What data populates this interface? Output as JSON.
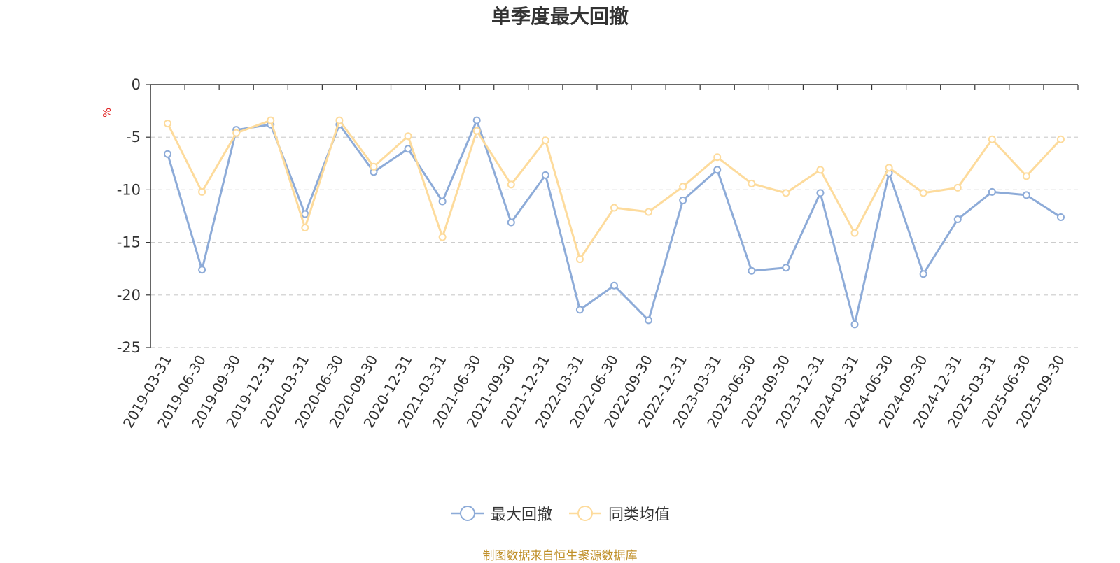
{
  "colors": {
    "series_1": "#8dabd8",
    "series_2": "#fddb9c",
    "unit": "#e02020",
    "source": "#c0902a",
    "axis": "#333333",
    "grid": "#cccccc"
  },
  "source_note": "制图数据来自恒生聚源数据库",
  "chart_data": {
    "type": "line",
    "title": "单季度最大回撤",
    "ylabel": "%",
    "xlabel": "",
    "ylim": [
      -25,
      0
    ],
    "yticks": [
      0,
      -5,
      -10,
      -15,
      -20,
      -25
    ],
    "grid": "horizontal-dashed",
    "legend_position": "bottom-center",
    "categories": [
      "2019-03-31",
      "2019-06-30",
      "2019-09-30",
      "2019-12-31",
      "2020-03-31",
      "2020-06-30",
      "2020-09-30",
      "2020-12-31",
      "2021-03-31",
      "2021-06-30",
      "2021-09-30",
      "2021-12-31",
      "2022-03-31",
      "2022-06-30",
      "2022-09-30",
      "2022-12-31",
      "2023-03-31",
      "2023-06-30",
      "2023-09-30",
      "2023-12-31",
      "2024-03-31",
      "2024-06-30",
      "2024-09-30",
      "2024-12-31",
      "2025-03-31",
      "2025-06-30",
      "2025-09-30"
    ],
    "series": [
      {
        "name": "最大回撤",
        "values": [
          -6.6,
          -17.6,
          -4.3,
          -3.8,
          -12.3,
          -3.8,
          -8.3,
          -6.1,
          -11.1,
          -3.4,
          -13.1,
          -8.6,
          -21.4,
          -19.1,
          -22.4,
          -11.0,
          -8.1,
          -17.7,
          -17.4,
          -10.3,
          -22.8,
          -8.4,
          -18.0,
          -12.8,
          -10.2,
          -10.5,
          -12.6
        ]
      },
      {
        "name": "同类均值",
        "values": [
          -3.7,
          -10.2,
          -4.6,
          -3.4,
          -13.6,
          -3.4,
          -7.8,
          -4.9,
          -14.5,
          -4.4,
          -9.5,
          -5.3,
          -16.6,
          -11.7,
          -12.1,
          -9.7,
          -6.9,
          -9.4,
          -10.3,
          -8.1,
          -14.1,
          -7.9,
          -10.3,
          -9.8,
          -5.2,
          -8.7,
          -5.2
        ]
      }
    ]
  }
}
